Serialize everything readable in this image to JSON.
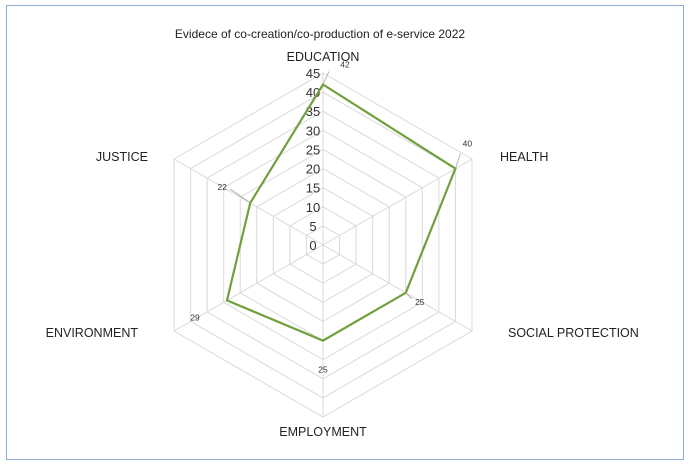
{
  "chart_data": {
    "type": "radar",
    "title": "Evidece of co-creation/co-production of e-service 2022",
    "categories": [
      "EDUCATION",
      "HEALTH",
      "SOCIAL PROTECTION",
      "EMPLOYMENT",
      "ENVIRONMENT",
      "JUSTICE"
    ],
    "series": [
      {
        "values": [
          42,
          40,
          25,
          25,
          29,
          22
        ]
      }
    ],
    "rlim": [
      0,
      45
    ],
    "ticks": [
      0,
      5,
      10,
      15,
      20,
      25,
      30,
      35,
      40,
      45
    ],
    "tick_labels": [
      "0",
      "5",
      "10",
      "15",
      "20",
      "25",
      "30",
      "35",
      "40",
      "45"
    ],
    "data_labels": [
      "42",
      "40",
      "25",
      "25",
      "29",
      "22"
    ],
    "grid": true,
    "line_color": "#70a03c",
    "grid_color": "#d9d9d9",
    "border_color": "#8aaed6"
  }
}
